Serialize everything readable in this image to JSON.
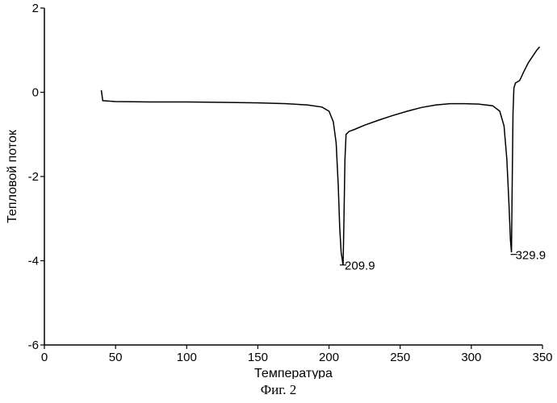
{
  "chart_data": {
    "type": "line",
    "xlabel": "Температура",
    "ylabel": "Тепловой поток",
    "xlim": [
      0,
      350
    ],
    "ylim": [
      -6,
      2
    ],
    "xticks": [
      0,
      50,
      100,
      150,
      200,
      250,
      300,
      350
    ],
    "yticks": [
      2,
      0,
      -2,
      -4,
      -6
    ],
    "grid": false,
    "series": [
      {
        "points": [
          [
            40,
            0.05
          ],
          [
            41,
            -0.2
          ],
          [
            50,
            -0.22
          ],
          [
            75,
            -0.23
          ],
          [
            100,
            -0.23
          ],
          [
            125,
            -0.24
          ],
          [
            150,
            -0.25
          ],
          [
            170,
            -0.27
          ],
          [
            185,
            -0.3
          ],
          [
            195,
            -0.35
          ],
          [
            200,
            -0.45
          ],
          [
            203,
            -0.7
          ],
          [
            205,
            -1.2
          ],
          [
            206.5,
            -2.2
          ],
          [
            207.5,
            -3.2
          ],
          [
            208.5,
            -3.8
          ],
          [
            209.9,
            -4.1
          ],
          [
            210.5,
            -3.0
          ],
          [
            211.2,
            -1.6
          ],
          [
            212,
            -1.0
          ],
          [
            214,
            -0.93
          ],
          [
            218,
            -0.88
          ],
          [
            225,
            -0.78
          ],
          [
            235,
            -0.66
          ],
          [
            245,
            -0.55
          ],
          [
            255,
            -0.45
          ],
          [
            265,
            -0.36
          ],
          [
            275,
            -0.3
          ],
          [
            285,
            -0.27
          ],
          [
            295,
            -0.27
          ],
          [
            305,
            -0.28
          ],
          [
            315,
            -0.32
          ],
          [
            320,
            -0.45
          ],
          [
            323,
            -0.8
          ],
          [
            325,
            -1.6
          ],
          [
            326.5,
            -2.7
          ],
          [
            327.5,
            -3.5
          ],
          [
            328.2,
            -3.8
          ],
          [
            328.8,
            -2.0
          ],
          [
            329.3,
            -0.5
          ],
          [
            329.9,
            0.1
          ],
          [
            331,
            0.22
          ],
          [
            334,
            0.28
          ],
          [
            337,
            0.5
          ],
          [
            340,
            0.7
          ],
          [
            343,
            0.85
          ],
          [
            346,
            1.0
          ],
          [
            348,
            1.08
          ]
        ]
      }
    ],
    "annotations": [
      {
        "label": "209.9",
        "x": 209.9,
        "y": -4.1
      },
      {
        "label": "329.9",
        "x": 329.9,
        "y": -3.85
      }
    ]
  },
  "caption": "Фиг. 2"
}
